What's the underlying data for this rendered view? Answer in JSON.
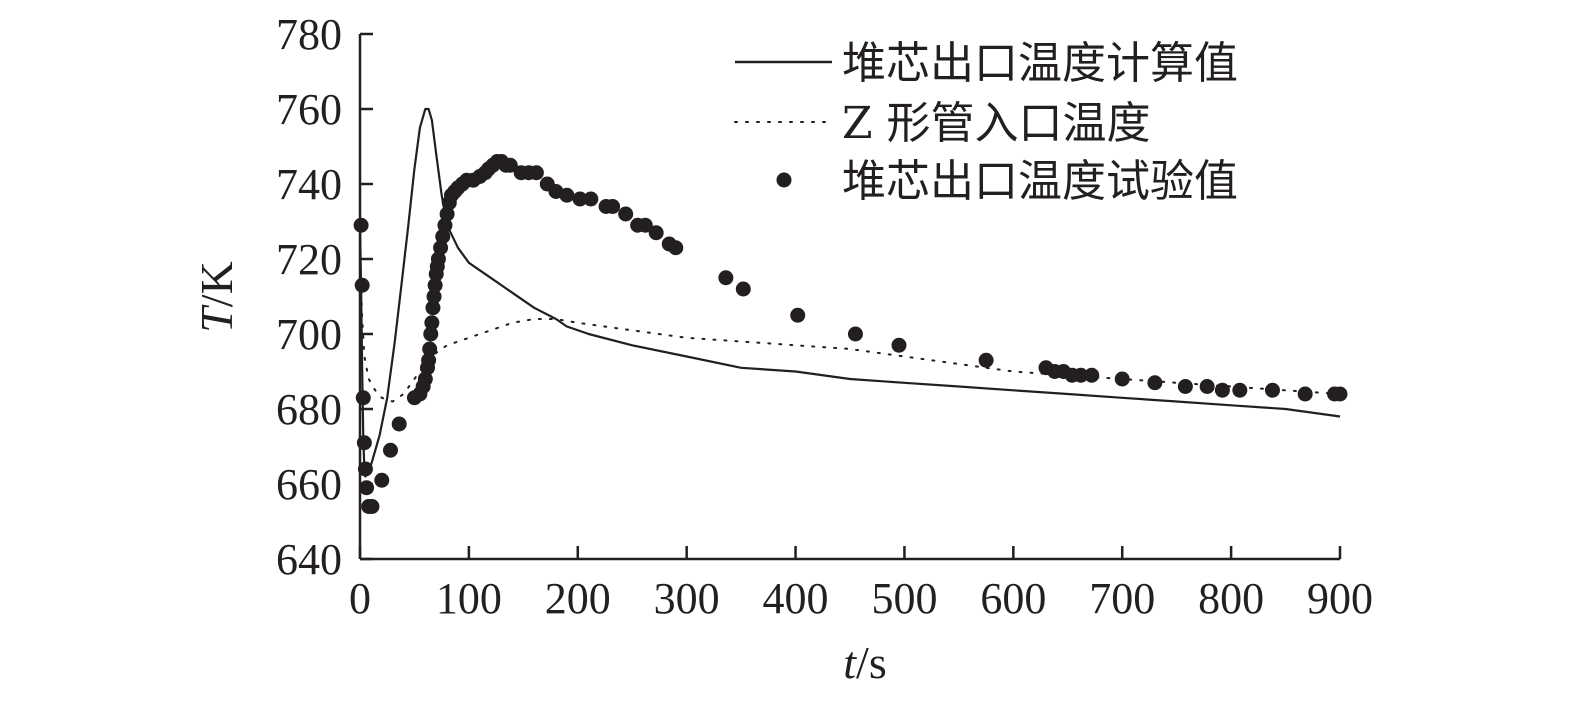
{
  "chart_data": {
    "type": "line",
    "xlabel": {
      "var": "t",
      "unit": "/s"
    },
    "ylabel": {
      "var": "T",
      "unit": "/K"
    },
    "xlim": [
      0,
      900
    ],
    "ylim": [
      640,
      780
    ],
    "x_ticks": [
      0,
      100,
      200,
      300,
      400,
      500,
      600,
      700,
      800,
      900
    ],
    "y_ticks": [
      640,
      660,
      680,
      700,
      720,
      740,
      760,
      780
    ],
    "grid": false,
    "legend": {
      "placement": "top-right"
    },
    "series": [
      {
        "name": "堆芯出口温度计算值",
        "style": "solid",
        "points": [
          [
            0,
            730
          ],
          [
            1,
            712
          ],
          [
            2,
            690
          ],
          [
            3,
            672
          ],
          [
            4,
            664
          ],
          [
            5,
            662
          ],
          [
            8,
            663
          ],
          [
            12,
            667
          ],
          [
            18,
            673
          ],
          [
            25,
            683
          ],
          [
            32,
            698
          ],
          [
            38,
            713
          ],
          [
            44,
            728
          ],
          [
            50,
            744
          ],
          [
            55,
            755
          ],
          [
            60,
            760
          ],
          [
            63,
            760
          ],
          [
            66,
            757
          ],
          [
            70,
            748
          ],
          [
            75,
            737
          ],
          [
            80,
            729
          ],
          [
            90,
            723
          ],
          [
            100,
            719
          ],
          [
            110,
            717
          ],
          [
            120,
            715
          ],
          [
            140,
            711
          ],
          [
            160,
            707
          ],
          [
            180,
            704
          ],
          [
            190,
            702
          ],
          [
            210,
            700
          ],
          [
            250,
            697
          ],
          [
            300,
            694
          ],
          [
            350,
            691
          ],
          [
            400,
            690
          ],
          [
            450,
            688
          ],
          [
            500,
            687
          ],
          [
            550,
            686
          ],
          [
            600,
            685
          ],
          [
            650,
            684
          ],
          [
            700,
            683
          ],
          [
            750,
            682
          ],
          [
            800,
            681
          ],
          [
            850,
            680
          ],
          [
            900,
            678
          ]
        ]
      },
      {
        "name": "Z 形管入口温度",
        "style": "dotted",
        "points": [
          [
            0,
            720
          ],
          [
            2,
            704
          ],
          [
            4,
            694
          ],
          [
            8,
            688
          ],
          [
            14,
            685
          ],
          [
            20,
            683
          ],
          [
            30,
            682
          ],
          [
            40,
            684
          ],
          [
            50,
            688
          ],
          [
            60,
            692
          ],
          [
            70,
            695
          ],
          [
            80,
            697
          ],
          [
            100,
            699
          ],
          [
            120,
            701
          ],
          [
            140,
            703
          ],
          [
            160,
            704
          ],
          [
            180,
            704
          ],
          [
            200,
            703
          ],
          [
            250,
            701
          ],
          [
            300,
            699
          ],
          [
            350,
            698
          ],
          [
            400,
            697
          ],
          [
            450,
            696
          ],
          [
            500,
            694
          ],
          [
            550,
            692
          ],
          [
            600,
            690
          ],
          [
            650,
            689
          ],
          [
            700,
            688
          ],
          [
            750,
            687
          ],
          [
            800,
            686
          ],
          [
            850,
            685
          ],
          [
            900,
            684
          ]
        ]
      },
      {
        "name": "堆芯出口温度试验值",
        "style": "markers",
        "points": [
          [
            1,
            729
          ],
          [
            2,
            713
          ],
          [
            3,
            683
          ],
          [
            4,
            671
          ],
          [
            5,
            664
          ],
          [
            6,
            659
          ],
          [
            8,
            654
          ],
          [
            11,
            654
          ],
          [
            20,
            661
          ],
          [
            28,
            669
          ],
          [
            36,
            676
          ],
          [
            50,
            683
          ],
          [
            55,
            684
          ],
          [
            58,
            686
          ],
          [
            60,
            688
          ],
          [
            62,
            691
          ],
          [
            63,
            693
          ],
          [
            64,
            696
          ],
          [
            65,
            700
          ],
          [
            66,
            703
          ],
          [
            67,
            707
          ],
          [
            68,
            710
          ],
          [
            69,
            713
          ],
          [
            70,
            716
          ],
          [
            71,
            718
          ],
          [
            72,
            720
          ],
          [
            74,
            723
          ],
          [
            76,
            726
          ],
          [
            78,
            729
          ],
          [
            80,
            732
          ],
          [
            82,
            735
          ],
          [
            84,
            737
          ],
          [
            87,
            738
          ],
          [
            90,
            739
          ],
          [
            94,
            740
          ],
          [
            98,
            741
          ],
          [
            104,
            741
          ],
          [
            110,
            742
          ],
          [
            115,
            743
          ],
          [
            118,
            744
          ],
          [
            122,
            745
          ],
          [
            126,
            746
          ],
          [
            130,
            746
          ],
          [
            134,
            745
          ],
          [
            138,
            745
          ],
          [
            148,
            743
          ],
          [
            155,
            743
          ],
          [
            162,
            743
          ],
          [
            172,
            740
          ],
          [
            180,
            738
          ],
          [
            190,
            737
          ],
          [
            202,
            736
          ],
          [
            212,
            736
          ],
          [
            226,
            734
          ],
          [
            232,
            734
          ],
          [
            244,
            732
          ],
          [
            255,
            729
          ],
          [
            262,
            729
          ],
          [
            272,
            727
          ],
          [
            284,
            724
          ],
          [
            290,
            723
          ],
          [
            336,
            715
          ],
          [
            352,
            712
          ],
          [
            402,
            705
          ],
          [
            455,
            700
          ],
          [
            495,
            697
          ],
          [
            575,
            693
          ],
          [
            630,
            691
          ],
          [
            638,
            690
          ],
          [
            646,
            690
          ],
          [
            654,
            689
          ],
          [
            662,
            689
          ],
          [
            672,
            689
          ],
          [
            700,
            688
          ],
          [
            730,
            687
          ],
          [
            758,
            686
          ],
          [
            778,
            686
          ],
          [
            792,
            685
          ],
          [
            808,
            685
          ],
          [
            838,
            685
          ],
          [
            868,
            684
          ],
          [
            895,
            684
          ],
          [
            900,
            684
          ]
        ]
      }
    ]
  }
}
